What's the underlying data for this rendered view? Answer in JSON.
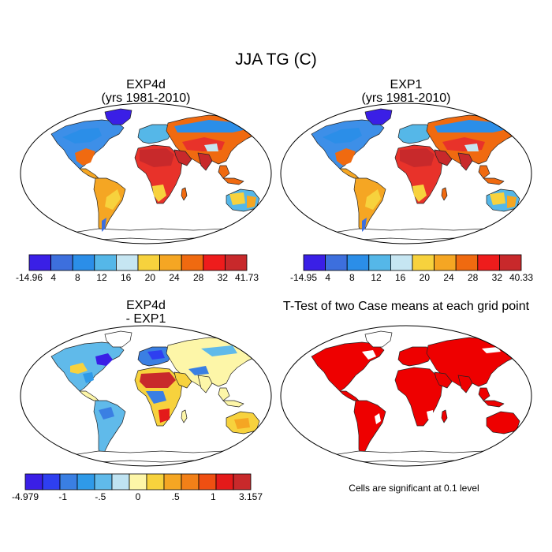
{
  "figure": {
    "title": "JJA TG (C)"
  },
  "panels": [
    {
      "id": "exp4d",
      "title_line1": "EXP4d",
      "title_line2": "(yrs 1981-2010)",
      "colorbar_labels": [
        "-14.96",
        "4",
        "8",
        "12",
        "16",
        "20",
        "24",
        "28",
        "32",
        "41.73"
      ],
      "colorbar_colors": [
        "#3a1fe6",
        "#3d6fdd",
        "#2b8ee8",
        "#55b7e8",
        "#c6e6f2",
        "#f7d23d",
        "#f5a623",
        "#f06a10",
        "#ee1c1c",
        "#c8292b"
      ]
    },
    {
      "id": "exp1",
      "title_line1": "EXP1",
      "title_line2": "(yrs 1981-2010)",
      "colorbar_labels": [
        "-14.95",
        "4",
        "8",
        "12",
        "16",
        "20",
        "24",
        "28",
        "32",
        "40.33"
      ],
      "colorbar_colors": [
        "#3a1fe6",
        "#3d6fdd",
        "#2b8ee8",
        "#55b7e8",
        "#c6e6f2",
        "#f7d23d",
        "#f5a623",
        "#f06a10",
        "#ee1c1c",
        "#c8292b"
      ]
    },
    {
      "id": "diff",
      "title_line1": "EXP4d",
      "title_line2": "- EXP1",
      "colorbar_labels": [
        "-4.979",
        "-1",
        "-.5",
        "0",
        ".5",
        "1",
        "3.157"
      ],
      "colorbar_colors": [
        "#3a1fe6",
        "#2e3ff0",
        "#3a7fe3",
        "#2f9ae8",
        "#60baea",
        "#bfe3f2",
        "#fdf6a8",
        "#f7d23d",
        "#f5a623",
        "#f28018",
        "#ef4f12",
        "#e41a1a",
        "#c8292b"
      ]
    },
    {
      "id": "ttest",
      "title_line1": "T-Test of two Case means at each grid point",
      "note": "Cells are significant at 0.1 level",
      "sig_color": "#ee0000"
    }
  ],
  "chart_data": [
    {
      "type": "heatmap",
      "title": "EXP4d (yrs 1981-2010)",
      "variable": "JJA TG (C)",
      "colorbar_ticks": [
        "-14.96",
        "4",
        "8",
        "12",
        "16",
        "20",
        "24",
        "28",
        "32",
        "41.73"
      ],
      "range": [
        -14.96,
        41.73
      ]
    },
    {
      "type": "heatmap",
      "title": "EXP1 (yrs 1981-2010)",
      "variable": "JJA TG (C)",
      "colorbar_ticks": [
        "-14.95",
        "4",
        "8",
        "12",
        "16",
        "20",
        "24",
        "28",
        "32",
        "40.33"
      ],
      "range": [
        -14.95,
        40.33
      ]
    },
    {
      "type": "heatmap",
      "title": "EXP4d - EXP1",
      "variable": "JJA TG (C)",
      "colorbar_ticks": [
        "-4.979",
        "-1",
        "-.5",
        "0",
        ".5",
        "1",
        "3.157"
      ],
      "range": [
        -4.979,
        3.157
      ]
    },
    {
      "type": "heatmap",
      "title": "T-Test of two Case means at each grid point",
      "annotation": "Cells are significant at 0.1 level"
    }
  ]
}
